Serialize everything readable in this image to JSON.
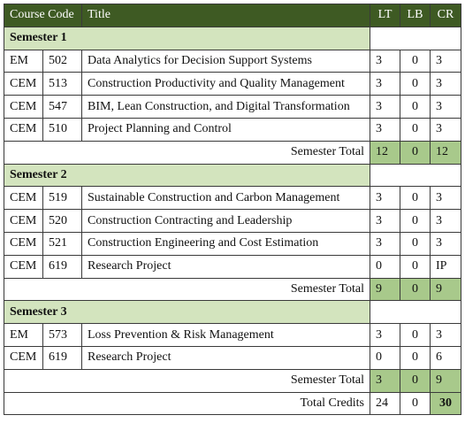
{
  "header": {
    "course_code": "Course Code",
    "title": "Title",
    "lt": "LT",
    "lb": "LB",
    "cr": "CR"
  },
  "semesters": [
    {
      "label": "Semester 1",
      "courses": [
        {
          "prefix": "EM",
          "number": "502",
          "title": "Data Analytics for Decision Support Systems",
          "lt": "3",
          "lb": "0",
          "cr": "3"
        },
        {
          "prefix": "CEM",
          "number": "513",
          "title": "Construction Productivity and Quality Management",
          "lt": "3",
          "lb": "0",
          "cr": "3"
        },
        {
          "prefix": "CEM",
          "number": "547",
          "title": "BIM, Lean Construction, and Digital Transformation",
          "lt": "3",
          "lb": "0",
          "cr": "3"
        },
        {
          "prefix": "CEM",
          "number": "510",
          "title": "Project Planning and Control",
          "lt": "3",
          "lb": "0",
          "cr": "3"
        }
      ],
      "total_label": "Semester Total",
      "total_lt": "12",
      "total_lb": "0",
      "total_cr": "12"
    },
    {
      "label": "Semester 2",
      "courses": [
        {
          "prefix": "CEM",
          "number": "519",
          "title": "Sustainable Construction and Carbon Management",
          "lt": "3",
          "lb": "0",
          "cr": "3"
        },
        {
          "prefix": "CEM",
          "number": "520",
          "title": "Construction Contracting and Leadership",
          "lt": "3",
          "lb": "0",
          "cr": "3"
        },
        {
          "prefix": "CEM",
          "number": "521",
          "title": "Construction Engineering and Cost Estimation",
          "lt": "3",
          "lb": "0",
          "cr": "3"
        },
        {
          "prefix": "CEM",
          "number": "619",
          "title": "Research Project",
          "lt": "0",
          "lb": "0",
          "cr": "IP"
        }
      ],
      "total_label": "Semester Total",
      "total_lt": "9",
      "total_lb": "0",
      "total_cr": "9"
    },
    {
      "label": "Semester 3",
      "courses": [
        {
          "prefix": "EM",
          "number": "573",
          "title": "Loss Prevention & Risk Management",
          "lt": "3",
          "lb": "0",
          "cr": "3"
        },
        {
          "prefix": "CEM",
          "number": "619",
          "title": "Research Project",
          "lt": "0",
          "lb": "0",
          "cr": "6"
        }
      ],
      "total_label": "Semester Total",
      "total_lt": "3",
      "total_lb": "0",
      "total_cr": "9"
    }
  ],
  "grand_total": {
    "label": "Total Credits",
    "lt": "24",
    "lb": "0",
    "cr": "30"
  }
}
